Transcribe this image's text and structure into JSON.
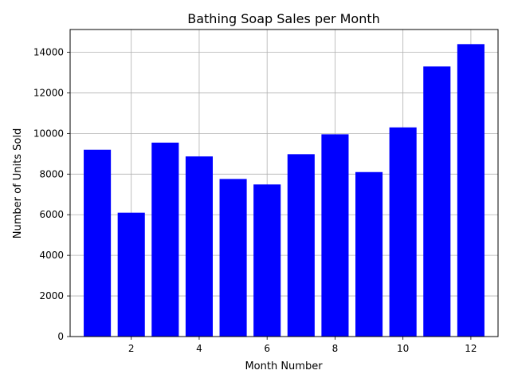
{
  "chart_data": {
    "type": "bar",
    "title": "Bathing Soap Sales per Month",
    "xlabel": "Month Number",
    "ylabel": "Number of Units Sold",
    "x": [
      1,
      2,
      3,
      4,
      5,
      6,
      7,
      8,
      9,
      10,
      11,
      12
    ],
    "values": [
      9200,
      6100,
      9550,
      8870,
      7760,
      7490,
      8980,
      9960,
      8100,
      10300,
      13300,
      14400
    ],
    "xlim": [
      0.2,
      12.8
    ],
    "ylim": [
      0,
      15120
    ],
    "xticks": [
      2,
      4,
      6,
      8,
      10,
      12
    ],
    "yticks": [
      0,
      2000,
      4000,
      6000,
      8000,
      10000,
      12000,
      14000
    ],
    "bar_color": "#0000ff",
    "grid": true,
    "legend": "none"
  }
}
